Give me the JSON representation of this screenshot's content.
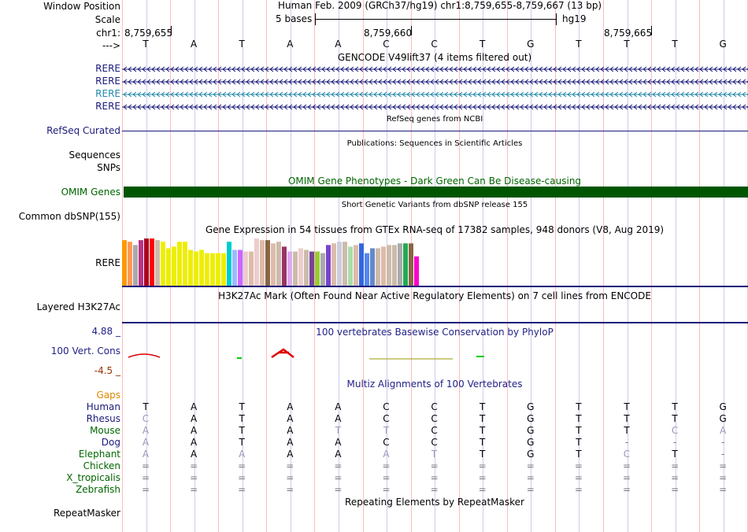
{
  "labels": {
    "window_position": "Window Position",
    "scale": "Scale",
    "chrom": "chr1:",
    "strand": "--->",
    "rere1": "RERE",
    "rere2": "RERE",
    "rere3": "RERE",
    "rere4": "RERE",
    "refseq": "RefSeq Curated",
    "sequences": "Sequences",
    "snps": "SNPs",
    "omim": "OMIM Genes",
    "common_dbsnp": "Common dbSNP(155)",
    "gtex_rere": "RERE",
    "h3k27ac": "Layered H3K27Ac",
    "phylop_max": "4.88 _",
    "phylop_label": "100 Vert. Cons",
    "phylop_min": "-4.5 _",
    "gaps": "Gaps",
    "species": [
      "Human",
      "Rhesus",
      "Mouse",
      "Dog",
      "Elephant",
      "Chicken",
      "X_tropicalis",
      "Zebrafish"
    ],
    "repeatmasker": "RepeatMasker"
  },
  "header": {
    "position": "Human Feb. 2009 (GRCh37/hg19)   chr1:8,759,655-8,759,667 (13 bp)",
    "scale_text": "5 bases",
    "assembly": "hg19",
    "ticks": [
      "8,759,655",
      "8,759,660",
      "8,759,665"
    ]
  },
  "bases": [
    "T",
    "A",
    "T",
    "A",
    "A",
    "C",
    "C",
    "T",
    "G",
    "T",
    "T",
    "T",
    "G"
  ],
  "tracks": {
    "gencode": "GENCODE V49lift37 (4 items filtered out)",
    "refseq": "RefSeq genes from NCBI",
    "publications": "Publications: Sequences in Scientific Articles",
    "omim": "OMIM Gene Phenotypes - Dark Green Can Be Disease-causing",
    "dbsnp": "Short Genetic Variants from dbSNP release 155",
    "gtex": "Gene Expression in 54 tissues from GTEx RNA-seq of 17382 samples, 948 donors (V8, Aug 2019)",
    "h3k27ac": "H3K27Ac Mark (Often Found Near Active Regulatory Elements) on 7 cell lines from ENCODE",
    "phylop": "100 vertebrates Basewise Conservation by PhyloP",
    "multiz": "Multiz Alignments of 100 Vertebrates",
    "repeatmasker": "Repeating Elements by RepeatMasker"
  },
  "alignment": [
    "TATAACCTGTTTG",
    "CATAACCTGTTTG",
    "AATATTCTGTTCA",
    "AATAACCTGT---",
    "AAAAAATTGTCT-",
    "=============",
    "=============",
    "============="
  ],
  "gtex_values": [
    28,
    27,
    25,
    28,
    29,
    29,
    28,
    27,
    23,
    24,
    27,
    27,
    22,
    21,
    22,
    20,
    20,
    20,
    20,
    27,
    22,
    22,
    21,
    21,
    29,
    28,
    28,
    26,
    27,
    24,
    21,
    21,
    23,
    22,
    21,
    21,
    20,
    25,
    26,
    27,
    27,
    24,
    25,
    26,
    20,
    23,
    23,
    24,
    25,
    25,
    26,
    26,
    26,
    18
  ],
  "gtex_colors": [
    "#ff9900",
    "#ff9955",
    "#aaaaaa",
    "#bb3388",
    "#aa0022",
    "#ff0000",
    "#ccbbaa",
    "#eeee00",
    "#eeee00",
    "#eeee00",
    "#eeee00",
    "#eeee00",
    "#eeee00",
    "#eeee00",
    "#eeee00",
    "#eeee00",
    "#eeee00",
    "#eeee00",
    "#eeee00",
    "#00cccc",
    "#99bbff",
    "#cc66ff",
    "#eecccc",
    "#ddbbaa",
    "#eecccc",
    "#ddbbaa",
    "#886644",
    "#ddbbaa",
    "#ccbbaa",
    "#993366",
    "#ddaaee",
    "#ccbbaa",
    "#eecccc",
    "#ccbbaa",
    "#774499",
    "#99cc33",
    "#aaaaaa",
    "#7744cc",
    "#ddbbaa",
    "#ccccdd",
    "#ccbbaa",
    "#aaddaa",
    "#ddbbaa",
    "#3366dd",
    "#5588ee",
    "#6688cc",
    "#ccbbaa",
    "#ddbbaa",
    "#ccbbaa",
    "#ccbbaa",
    "#aaaaaa",
    "#22aa55",
    "#886644",
    "#ff00cc"
  ],
  "colors": {
    "track_label": "#1a1a7a",
    "omim_label": "#006600",
    "omim_bar": "#005500",
    "phylop_text": "#222288",
    "phylop_min": "#993300",
    "gaps": "#dd8800",
    "grid_line": "#ccccee",
    "grid_line_red": "#ffbbbb",
    "gencode_blue": "#1a1a7a",
    "gencode_teal": "#2288aa"
  }
}
